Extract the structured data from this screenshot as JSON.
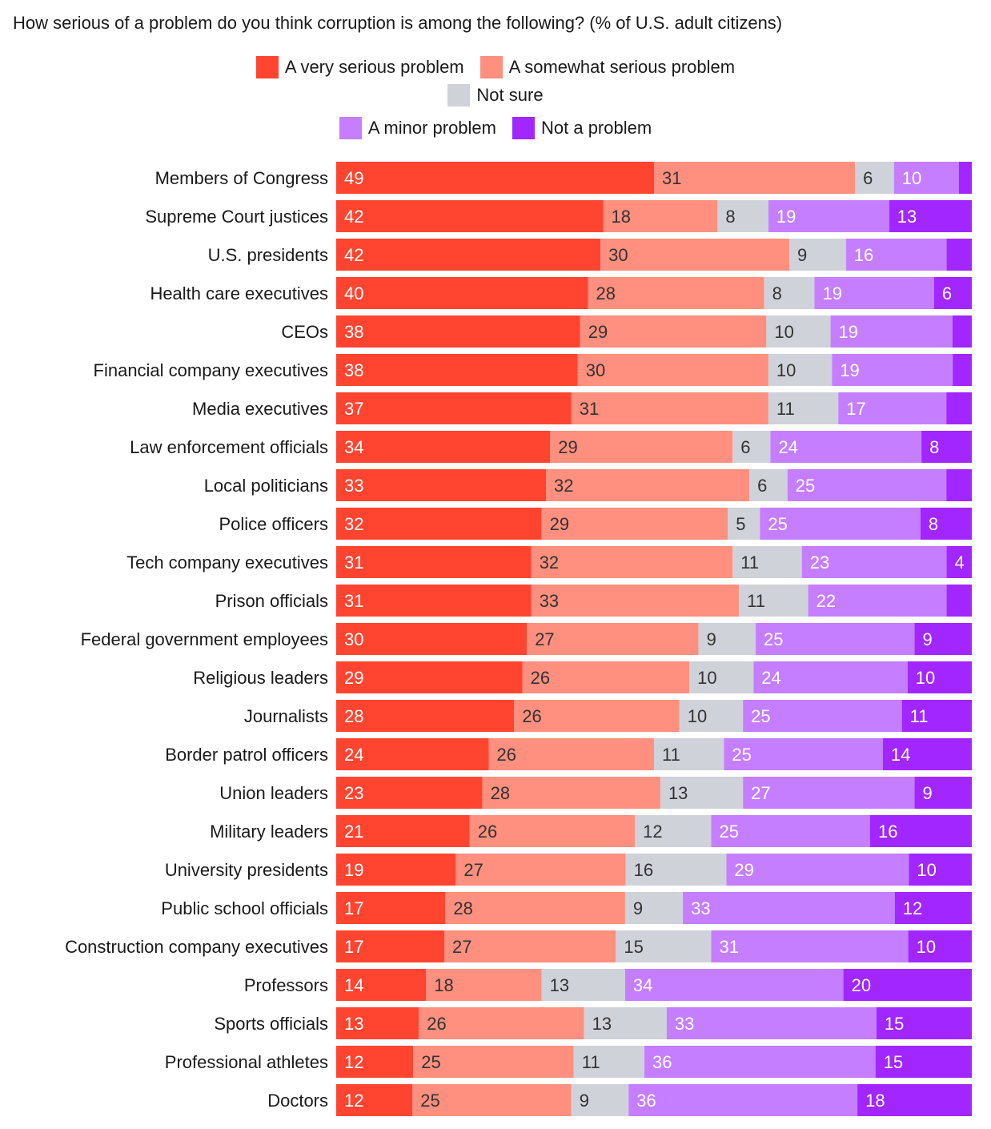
{
  "chart_data": {
    "type": "bar",
    "orientation": "horizontal",
    "stacked": true,
    "title": "How serious of a problem do you think corruption is among the following? (% of U.S. adult citizens)",
    "xlim": [
      0,
      100
    ],
    "grid": false,
    "legend_position": "top-center",
    "categories": [
      "Members of Congress",
      "Supreme Court justices",
      "U.S. presidents",
      "Health care executives",
      "CEOs",
      "Financial company executives",
      "Media executives",
      "Law enforcement officials",
      "Local politicians",
      "Police officers",
      "Tech company executives",
      "Prison officials",
      "Federal government employees",
      "Religious leaders",
      "Journalists",
      "Border patrol officers",
      "Union leaders",
      "Military leaders",
      "University presidents",
      "Public school officials",
      "Construction company executives",
      "Professors",
      "Sports officials",
      "Professional athletes",
      "Doctors"
    ],
    "series": [
      {
        "name": "A very serious problem",
        "color": "#ff4430",
        "label_color": "#ffffff",
        "values": [
          49,
          42,
          42,
          40,
          38,
          38,
          37,
          34,
          33,
          32,
          31,
          31,
          30,
          29,
          28,
          24,
          23,
          21,
          19,
          17,
          17,
          14,
          13,
          12,
          12
        ],
        "labels": [
          "49",
          "42",
          "42",
          "40",
          "38",
          "38",
          "37",
          "34",
          "33",
          "32",
          "31",
          "31",
          "30",
          "29",
          "28",
          "24",
          "23",
          "21",
          "19",
          "17",
          "17",
          "14",
          "13",
          "12",
          "12"
        ]
      },
      {
        "name": "A somewhat serious problem",
        "color": "#ff8f7e",
        "label_color": "#333333",
        "values": [
          31,
          18,
          30,
          28,
          29,
          30,
          31,
          29,
          32,
          29,
          32,
          33,
          27,
          26,
          26,
          26,
          28,
          26,
          27,
          28,
          27,
          18,
          26,
          25,
          25
        ],
        "labels": [
          "31",
          "18",
          "30",
          "28",
          "29",
          "30",
          "31",
          "29",
          "32",
          "29",
          "32",
          "33",
          "27",
          "26",
          "26",
          "26",
          "28",
          "26",
          "27",
          "28",
          "27",
          "18",
          "26",
          "25",
          "25"
        ]
      },
      {
        "name": "Not sure",
        "color": "#d0d2d9",
        "label_color": "#333333",
        "values": [
          6,
          8,
          9,
          8,
          10,
          10,
          11,
          6,
          6,
          5,
          11,
          11,
          9,
          10,
          10,
          11,
          13,
          12,
          16,
          9,
          15,
          13,
          13,
          11,
          9
        ],
        "labels": [
          "6",
          "8",
          "9",
          "8",
          "10",
          "10",
          "11",
          "6",
          "6",
          "5",
          "11",
          "11",
          "9",
          "10",
          "10",
          "11",
          "13",
          "12",
          "16",
          "9",
          "15",
          "13",
          "13",
          "11",
          "9"
        ]
      },
      {
        "name": "A minor problem",
        "color": "#c57eff",
        "label_color": "#ffffff",
        "values": [
          10,
          19,
          16,
          19,
          19,
          19,
          17,
          24,
          25,
          25,
          23,
          22,
          25,
          24,
          25,
          25,
          27,
          25,
          29,
          33,
          31,
          34,
          33,
          36,
          36
        ],
        "labels": [
          "10",
          "19",
          "16",
          "19",
          "19",
          "19",
          "17",
          "24",
          "25",
          "25",
          "23",
          "22",
          "25",
          "24",
          "25",
          "25",
          "27",
          "25",
          "29",
          "33",
          "31",
          "34",
          "33",
          "36",
          "36"
        ]
      },
      {
        "name": "Not a problem",
        "color": "#a126ff",
        "label_color": "#ffffff",
        "values": [
          2,
          13,
          4,
          6,
          3,
          3,
          4,
          8,
          4,
          8,
          4,
          4,
          9,
          10,
          11,
          14,
          9,
          16,
          10,
          12,
          10,
          20,
          15,
          15,
          18
        ],
        "labels": [
          "",
          "13",
          "",
          "6",
          "",
          "",
          "",
          "8",
          "",
          "8",
          "4",
          "",
          "9",
          "10",
          "11",
          "14",
          "9",
          "16",
          "10",
          "12",
          "10",
          "20",
          "15",
          "15",
          "18"
        ]
      }
    ]
  }
}
